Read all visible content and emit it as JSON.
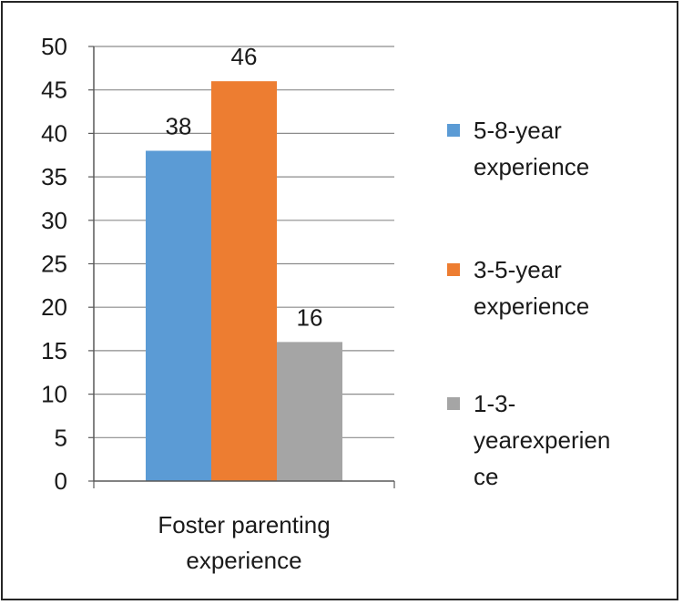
{
  "chart_data": {
    "type": "bar",
    "categories": [
      "Foster parenting experience"
    ],
    "category_label_lines": [
      "Foster parenting",
      "experience"
    ],
    "series": [
      {
        "name": "5-8-year experience",
        "legend_lines": [
          "5-8-year",
          "experience"
        ],
        "values": [
          38
        ],
        "color": "#5b9bd5"
      },
      {
        "name": "3-5-year experience",
        "legend_lines": [
          "3-5-year",
          "experience"
        ],
        "values": [
          46
        ],
        "color": "#ed7d31"
      },
      {
        "name": "1-3-yearexperience",
        "legend_lines": [
          "1-3-",
          "yearexperien",
          "ce"
        ],
        "values": [
          16
        ],
        "color": "#a5a5a5"
      }
    ],
    "ylim": [
      0,
      50
    ],
    "yticks": [
      0,
      5,
      10,
      15,
      20,
      25,
      30,
      35,
      40,
      45,
      50
    ],
    "data_labels": [
      "38",
      "46",
      "16"
    ],
    "grid": true,
    "legend_position": "right",
    "title": "",
    "xlabel": "",
    "ylabel": ""
  }
}
